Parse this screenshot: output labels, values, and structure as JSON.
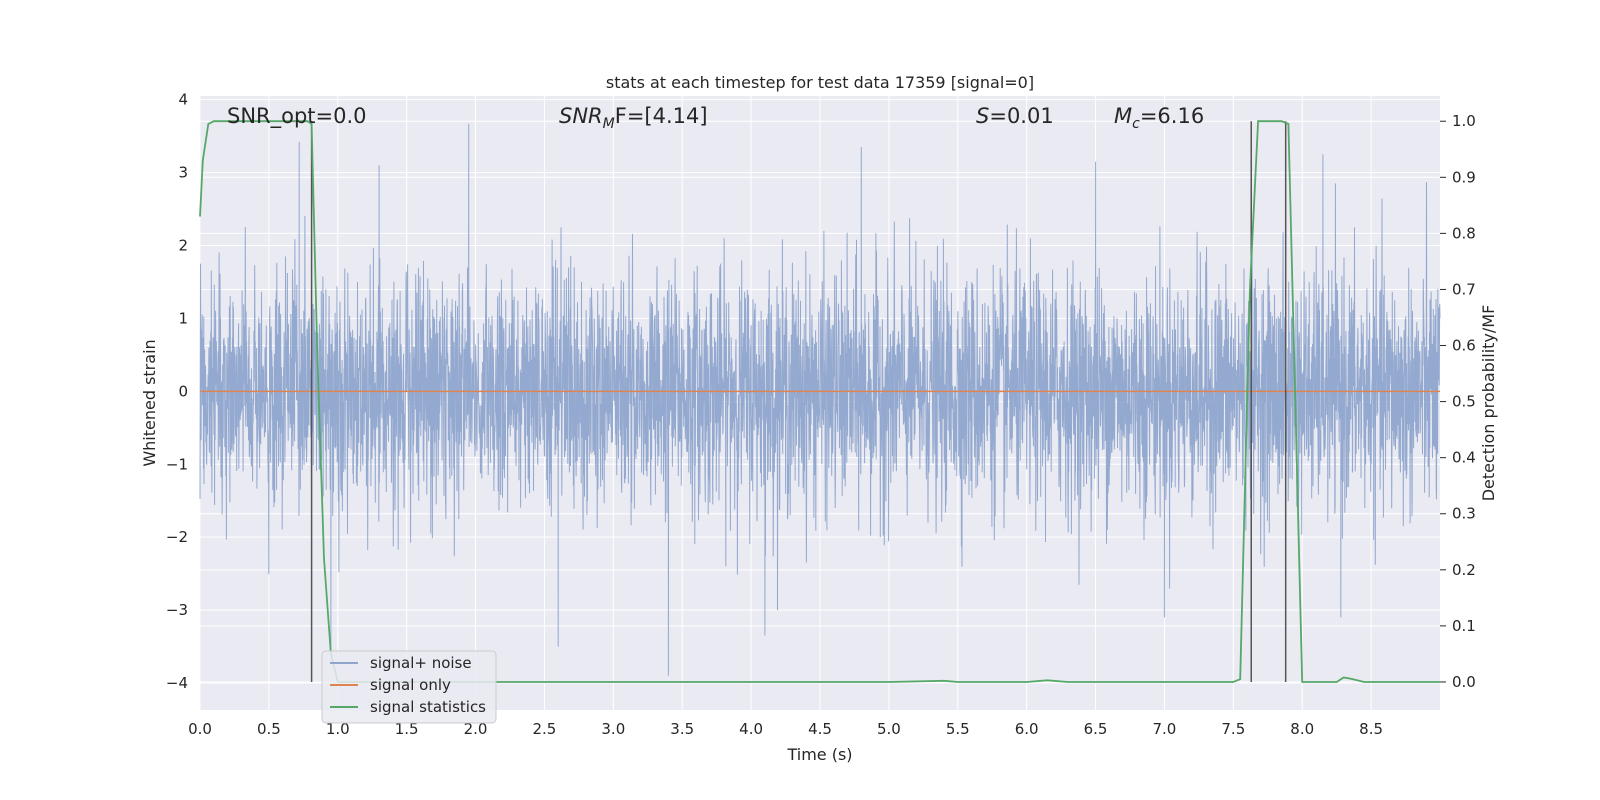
{
  "chart_data": {
    "type": "line",
    "title": "stats at each timestep for test data 17359 [signal=0]",
    "xlabel": "Time (s)",
    "ylabel_left": "Whitened strain",
    "ylabel_right": "Detection probability/MF",
    "xlim": [
      0.0,
      9.0
    ],
    "ylim_left": [
      -4.37,
      4.05
    ],
    "ylim_right": [
      -0.05,
      1.045
    ],
    "x_ticks": [
      0.0,
      0.5,
      1.0,
      1.5,
      2.0,
      2.5,
      3.0,
      3.5,
      4.0,
      4.5,
      5.0,
      5.5,
      6.0,
      6.5,
      7.0,
      7.5,
      8.0,
      8.5
    ],
    "x_tick_labels": [
      "0.0",
      "0.5",
      "1.0",
      "1.5",
      "2.0",
      "2.5",
      "3.0",
      "3.5",
      "4.0",
      "4.5",
      "5.0",
      "5.5",
      "6.0",
      "6.5",
      "7.0",
      "7.5",
      "8.0",
      "8.5"
    ],
    "y_ticks_left": [
      -4,
      -3,
      -2,
      -1,
      0,
      1,
      2,
      3,
      4
    ],
    "y_tick_labels_left": [
      "−4",
      "−3",
      "−2",
      "−1",
      "0",
      "1",
      "2",
      "3",
      "4"
    ],
    "y_ticks_right": [
      0.0,
      0.1,
      0.2,
      0.3,
      0.4,
      0.5,
      0.6,
      0.7,
      0.8,
      0.9,
      1.0
    ],
    "y_tick_labels_right": [
      "0.0",
      "0.1",
      "0.2",
      "0.3",
      "0.4",
      "0.5",
      "0.6",
      "0.7",
      "0.8",
      "0.9",
      "1.0"
    ],
    "grid": true,
    "annotations": {
      "snr_opt": "SNR_opt=0.0",
      "snr_mf_main": "SNR",
      "snr_mf_sub": "M",
      "snr_mf_rest": "F=[4.14]",
      "s_main": "S",
      "s_rest": "=0.01",
      "mc_main": "M",
      "mc_sub": "c",
      "mc_rest": "=6.16"
    },
    "series": [
      {
        "name": "signal+ noise",
        "color": "#8fa5cc",
        "axis": "left",
        "noise_envelope": {
          "duration": 9.0,
          "typical_range": [
            -1.7,
            1.6
          ]
        },
        "notable_peaks": [
          {
            "x": 0.72,
            "y": 3.42
          },
          {
            "x": 1.95,
            "y": 3.67
          },
          {
            "x": 4.8,
            "y": 3.35
          },
          {
            "x": 1.3,
            "y": 3.1
          },
          {
            "x": 6.5,
            "y": 3.15
          },
          {
            "x": 8.15,
            "y": 3.25
          }
        ],
        "notable_troughs": [
          {
            "x": 3.4,
            "y": -3.9
          },
          {
            "x": 2.6,
            "y": -3.5
          },
          {
            "x": 4.1,
            "y": -3.35
          },
          {
            "x": 0.95,
            "y": -3.6
          },
          {
            "x": 7.0,
            "y": -3.1
          },
          {
            "x": 8.28,
            "y": -3.1
          }
        ]
      },
      {
        "name": "signal only",
        "color": "#dd8452",
        "axis": "left",
        "x": [
          0.0,
          9.0
        ],
        "y": [
          0.0,
          0.0
        ]
      },
      {
        "name": "signal statistics",
        "color": "#55a868",
        "axis": "right",
        "x": [
          0.0,
          0.02,
          0.06,
          0.1,
          0.2,
          0.5,
          0.78,
          0.81,
          0.85,
          0.9,
          0.95,
          1.0,
          1.5,
          2.0,
          3.0,
          4.0,
          5.0,
          5.4,
          5.5,
          6.0,
          6.15,
          6.3,
          7.0,
          7.5,
          7.55,
          7.62,
          7.68,
          7.75,
          7.85,
          7.9,
          7.95,
          8.0,
          8.1,
          8.25,
          8.3,
          8.35,
          8.45,
          9.0
        ],
        "y": [
          0.83,
          0.93,
          0.995,
          1.0,
          1.0,
          1.0,
          1.0,
          0.995,
          0.6,
          0.22,
          0.05,
          0.0,
          0.0,
          0.0,
          0.0,
          0.0,
          0.0,
          0.002,
          0.0,
          0.0,
          0.003,
          0.0,
          0.0,
          0.0,
          0.005,
          0.7,
          1.0,
          1.0,
          1.0,
          0.995,
          0.5,
          0.0,
          0.0,
          0.0,
          0.008,
          0.006,
          0.0,
          0.0
        ]
      }
    ],
    "vlines": [
      0.81,
      7.63,
      7.88
    ],
    "vline_color": "#555555",
    "legend": {
      "placement": "lower-left",
      "entries": [
        "signal+ noise",
        "signal only",
        "signal statistics"
      ]
    },
    "colors": {
      "plot_bg": "#eaeaf2",
      "grid": "#ffffff"
    }
  }
}
